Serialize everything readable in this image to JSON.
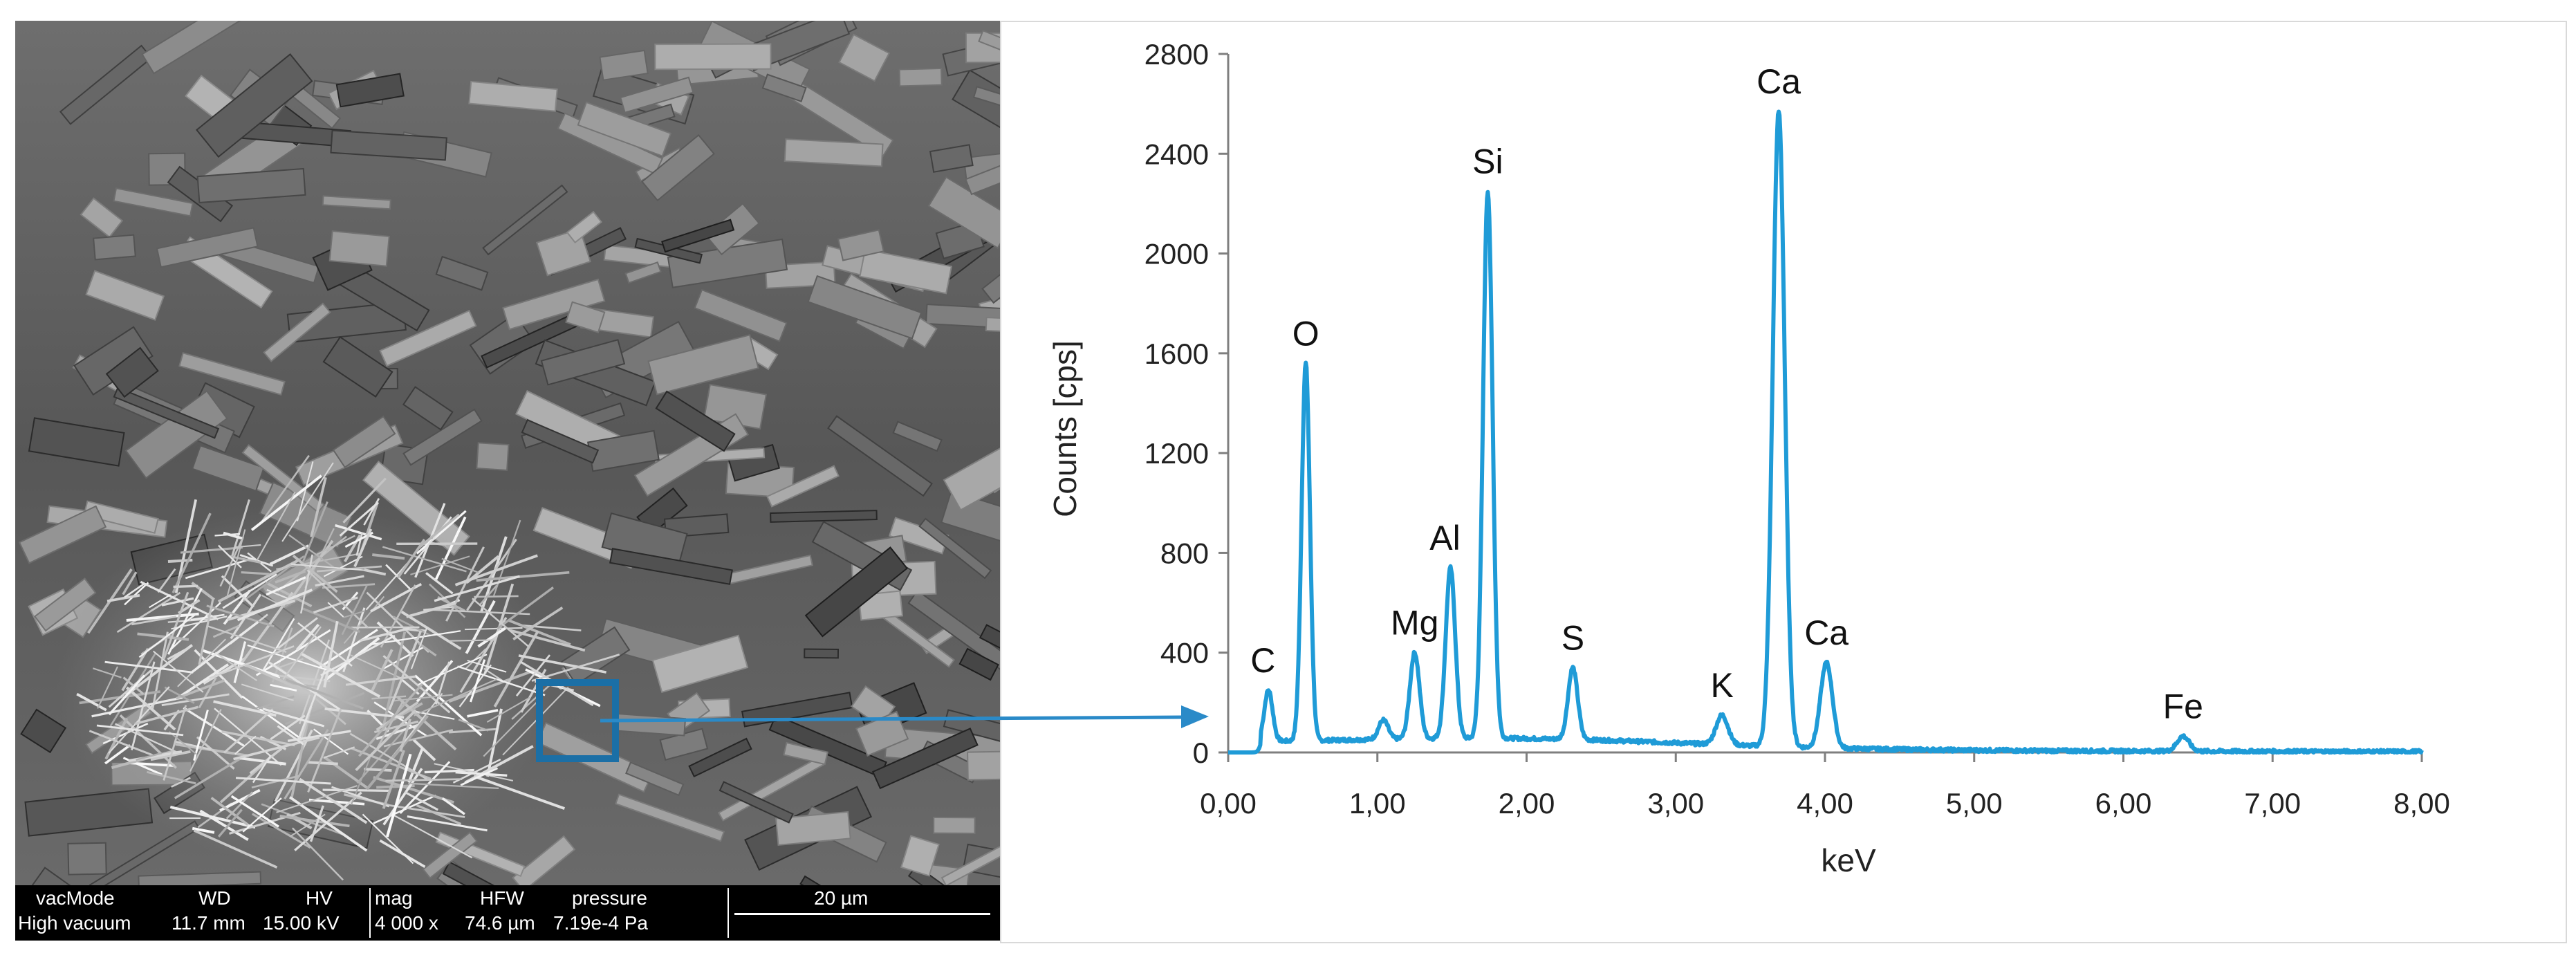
{
  "sem": {
    "databar": {
      "labels": [
        "vacMode",
        "WD",
        "HV",
        "mag",
        "HFW",
        "pressure"
      ],
      "values": [
        "High vacuum",
        "11.7 mm",
        "15.00 kV",
        "4 000 x",
        "74.6 µm",
        "7.19e-4 Pa"
      ],
      "scale_label": "20 µm"
    }
  },
  "chart_data": {
    "type": "line",
    "title": "",
    "xlabel": "keV",
    "ylabel": "Counts [cps]",
    "xlim": [
      0,
      8
    ],
    "ylim": [
      0,
      2800
    ],
    "x_ticks": [
      "0,00",
      "1,00",
      "2,00",
      "3,00",
      "4,00",
      "5,00",
      "6,00",
      "7,00",
      "8,00"
    ],
    "y_ticks": [
      "0",
      "400",
      "800",
      "1200",
      "1600",
      "2000",
      "2400",
      "2800"
    ],
    "grid": false,
    "line_color": "#1f9bd7",
    "peaks": [
      {
        "label": "C",
        "x": 0.27,
        "y": 250
      },
      {
        "label": "O",
        "x": 0.52,
        "y": 1560
      },
      {
        "label": "Mg",
        "x": 1.25,
        "y": 400
      },
      {
        "label": "Al",
        "x": 1.49,
        "y": 740
      },
      {
        "label": "Si",
        "x": 1.74,
        "y": 2250
      },
      {
        "label": "S",
        "x": 2.31,
        "y": 340
      },
      {
        "label": "K",
        "x": 3.31,
        "y": 150
      },
      {
        "label": "Ca",
        "x": 3.69,
        "y": 2570
      },
      {
        "label": "Ca",
        "x": 4.01,
        "y": 360
      },
      {
        "label": "Fe",
        "x": 6.4,
        "y": 65
      }
    ],
    "minor_peaks": [
      {
        "x": 1.04,
        "y": 130
      }
    ]
  }
}
